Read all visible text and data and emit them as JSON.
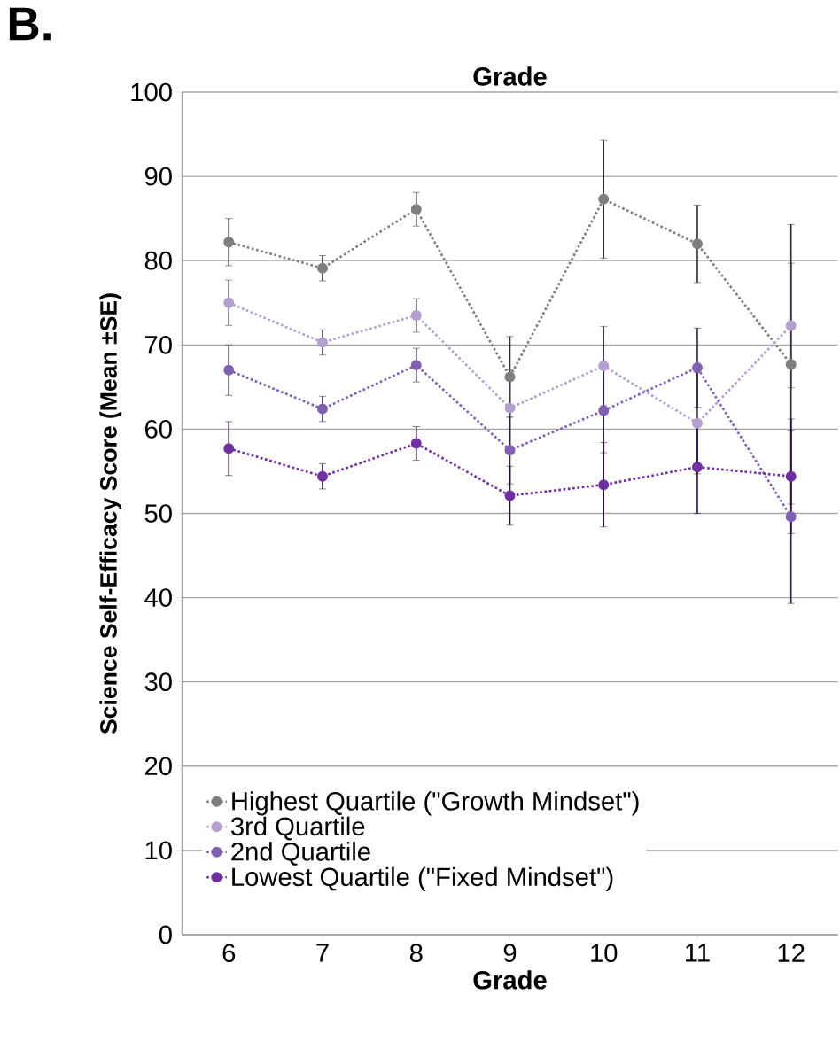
{
  "chart_data": {
    "type": "line",
    "title": "Grade",
    "annotations": [
      "B."
    ],
    "xlabel": "Grade",
    "ylabel": "Science Self-Efficacy Score (Mean ±SE)",
    "x": [
      6,
      7,
      8,
      9,
      10,
      11,
      12
    ],
    "xlim": [
      5.5,
      12.5
    ],
    "xticks": [
      6,
      7,
      8,
      9,
      10,
      11,
      12
    ],
    "ylim": [
      0,
      100
    ],
    "yticks": [
      0,
      10,
      20,
      30,
      40,
      50,
      60,
      70,
      80,
      90,
      100
    ],
    "grid": "y",
    "legend": "bottom left",
    "marker": "circle",
    "line_style": "dotted",
    "series": [
      {
        "name": "Highest Quartile (\"Growth Mindset\")",
        "color": "#7f7f7f",
        "values": [
          82.2,
          79.1,
          86.1,
          66.2,
          87.3,
          82,
          67.7
        ],
        "errors": [
          2.8,
          1.5,
          2,
          4.8,
          7,
          4.6,
          16.6
        ]
      },
      {
        "name": "3rd Quartile",
        "color": "#b4a0d0",
        "values": [
          75,
          70.3,
          73.5,
          62.5,
          67.5,
          60.7,
          72.3
        ],
        "errors": [
          2.7,
          1.5,
          2,
          4.5,
          4.7,
          6,
          7.4
        ]
      },
      {
        "name": "2nd Quartile",
        "color": "#8060b0",
        "values": [
          67,
          62.4,
          67.6,
          57.5,
          62.2,
          67.3,
          49.6
        ],
        "errors": [
          3,
          1.5,
          2,
          4,
          5,
          4.7,
          10.3
        ]
      },
      {
        "name": "Lowest Quartile (\"Fixed Mindset\")",
        "color": "#7030a0",
        "values": [
          57.7,
          54.4,
          58.3,
          52.1,
          53.4,
          55.5,
          54.4
        ],
        "errors": [
          3.2,
          1.5,
          2,
          3.5,
          5,
          5.5,
          6.8
        ]
      }
    ]
  }
}
